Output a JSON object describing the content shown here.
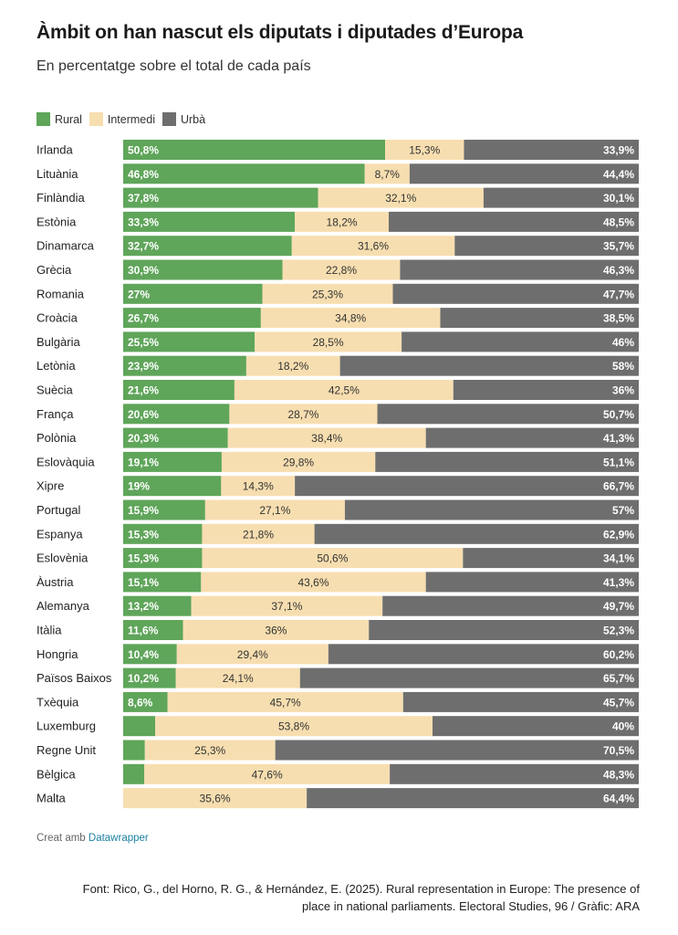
{
  "chart_data": {
    "type": "bar",
    "orientation": "horizontal",
    "stacked": true,
    "title": "Àmbit on han nascut els diputats i diputades d’Europa",
    "subtitle": "En percentatge sobre el total de cada país",
    "legend": {
      "placement": "top-left",
      "entries": [
        "Rural",
        "Intermedi",
        "Urbà"
      ]
    },
    "colors": {
      "Rural": "#5fa55a",
      "Intermedi": "#f7deb0",
      "Urbà": "#6e6e6e"
    },
    "xlim": [
      0,
      100
    ],
    "categories": [
      "Irlanda",
      "Lituània",
      "Finlàndia",
      "Estònia",
      "Dinamarca",
      "Grècia",
      "Romania",
      "Croàcia",
      "Bulgària",
      "Letònia",
      "Suècia",
      "França",
      "Polònia",
      "Eslovàquia",
      "Xipre",
      "Portugal",
      "Espanya",
      "Eslovènia",
      "Àustria",
      "Alemanya",
      "Itàlia",
      "Hongria",
      "Països Baixos",
      "Txèquia",
      "Luxemburg",
      "Regne Unit",
      "Bèlgica",
      "Malta"
    ],
    "series": [
      {
        "name": "Rural",
        "values": [
          50.8,
          46.8,
          37.8,
          33.3,
          32.7,
          30.9,
          27,
          26.7,
          25.5,
          23.9,
          21.6,
          20.6,
          20.3,
          19.1,
          19,
          15.9,
          15.3,
          15.3,
          15.1,
          13.2,
          11.6,
          10.4,
          10.2,
          8.6,
          6.2,
          4.2,
          4.1,
          0
        ],
        "labels": [
          "50,8%",
          "46,8%",
          "37,8%",
          "33,3%",
          "32,7%",
          "30,9%",
          "27%",
          "26,7%",
          "25,5%",
          "23,9%",
          "21,6%",
          "20,6%",
          "20,3%",
          "19,1%",
          "19%",
          "15,9%",
          "15,3%",
          "15,3%",
          "15,1%",
          "13,2%",
          "11,6%",
          "10,4%",
          "10,2%",
          "8,6%",
          "",
          "",
          "",
          ""
        ]
      },
      {
        "name": "Intermedi",
        "values": [
          15.3,
          8.7,
          32.1,
          18.2,
          31.6,
          22.8,
          25.3,
          34.8,
          28.5,
          18.2,
          42.5,
          28.7,
          38.4,
          29.8,
          14.3,
          27.1,
          21.8,
          50.6,
          43.6,
          37.1,
          36,
          29.4,
          24.1,
          45.7,
          53.8,
          25.3,
          47.6,
          35.6
        ],
        "labels": [
          "15,3%",
          "8,7%",
          "32,1%",
          "18,2%",
          "31,6%",
          "22,8%",
          "25,3%",
          "34,8%",
          "28,5%",
          "18,2%",
          "42,5%",
          "28,7%",
          "38,4%",
          "29,8%",
          "14,3%",
          "27,1%",
          "21,8%",
          "50,6%",
          "43,6%",
          "37,1%",
          "36%",
          "29,4%",
          "24,1%",
          "45,7%",
          "53,8%",
          "25,3%",
          "47,6%",
          "35,6%"
        ]
      },
      {
        "name": "Urbà",
        "values": [
          33.9,
          44.4,
          30.1,
          48.5,
          35.7,
          46.3,
          47.7,
          38.5,
          46,
          58,
          36,
          50.7,
          41.3,
          51.1,
          66.7,
          57,
          62.9,
          34.1,
          41.3,
          49.7,
          52.3,
          60.2,
          65.7,
          45.7,
          40,
          70.5,
          48.3,
          64.4
        ],
        "labels": [
          "33,9%",
          "44,4%",
          "30,1%",
          "48,5%",
          "35,7%",
          "46,3%",
          "47,7%",
          "38,5%",
          "46%",
          "58%",
          "36%",
          "50,7%",
          "41,3%",
          "51,1%",
          "66,7%",
          "57%",
          "62,9%",
          "34,1%",
          "41,3%",
          "49,7%",
          "52,3%",
          "60,2%",
          "65,7%",
          "45,7%",
          "40%",
          "70,5%",
          "48,3%",
          "64,4%"
        ]
      }
    ]
  },
  "footer": {
    "credit_prefix": "Creat amb",
    "credit_link": "Datawrapper",
    "source_line1": "Font: Rico, G., del Horno, R. G., & Hernández, E. (2025). Rural representation in Europe: The presence of",
    "source_line2": "place in national parliaments. Electoral Studies, 96 / Gràfic: ARA"
  }
}
